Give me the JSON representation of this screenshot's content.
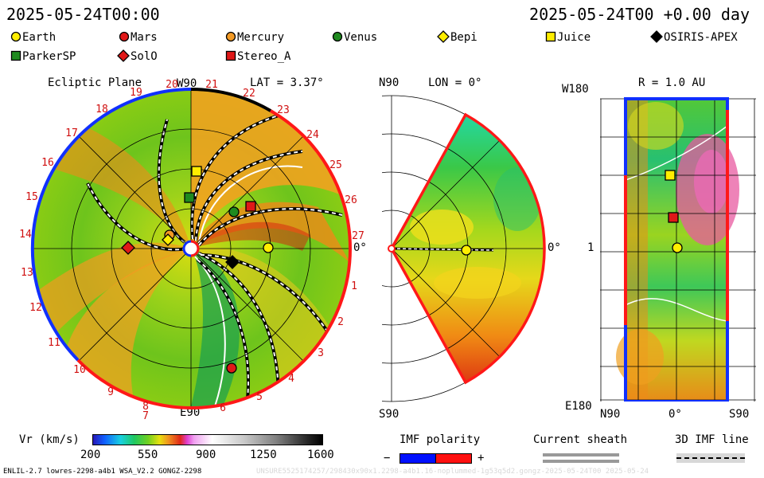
{
  "header": {
    "left_time": "2025-05-24T00:00",
    "right_time": "2025-05-24T00 +0.00 day"
  },
  "legend": [
    {
      "name": "Earth",
      "shape": "circle",
      "color": "#ffee00"
    },
    {
      "name": "Mars",
      "shape": "circle",
      "color": "#e01818"
    },
    {
      "name": "Mercury",
      "shape": "circle",
      "color": "#f39a25"
    },
    {
      "name": "Venus",
      "shape": "circle",
      "color": "#1f8a1f"
    },
    {
      "name": "Bepi",
      "shape": "diamond",
      "color": "#ffee00"
    },
    {
      "name": "Juice",
      "shape": "square",
      "color": "#ffee00"
    },
    {
      "name": "OSIRIS-APEX",
      "shape": "diamond",
      "color": "#000000"
    },
    {
      "name": "ParkerSP",
      "shape": "square",
      "color": "#1f8a1f"
    },
    {
      "name": "SolO",
      "shape": "diamond",
      "color": "#e01818"
    },
    {
      "name": "Stereo_A",
      "shape": "square",
      "color": "#e01818"
    }
  ],
  "ecliptic": {
    "title": "Ecliptic Plane",
    "lat_label": "LAT = 3.37°",
    "top_label": "W90",
    "bottom_label": "E90",
    "right_label": "0°",
    "carrington": [
      "1",
      "2",
      "3",
      "4",
      "5",
      "6",
      "7",
      "8",
      "9",
      "10",
      "11",
      "12",
      "13",
      "14",
      "15",
      "16",
      "17",
      "18",
      "19",
      "20",
      "21",
      "22",
      "23",
      "24",
      "25",
      "26",
      "27"
    ]
  },
  "meridional": {
    "title": "LON = 0°",
    "top_label": "N90",
    "bottom_label": "S90",
    "right_label": "0°"
  },
  "sphere": {
    "title": "R = 1.0 AU",
    "top_label": "W180",
    "bottom_label": "E180",
    "mid_label": "1",
    "x_left": "N90",
    "x_mid": "0°",
    "x_right": "S90"
  },
  "colorbar": {
    "label": "Vr (km/s)",
    "ticks": [
      "200",
      "550",
      "900",
      "1250",
      "1600"
    ]
  },
  "imf": {
    "label": "IMF polarity",
    "minus": "−",
    "plus": "+",
    "neg_color": "#0010ff",
    "pos_color": "#ff1010"
  },
  "sheath_label": "Current sheath",
  "imf3d_label": "3D IMF line",
  "footer_left": "ENLIL-2.7 lowres-2298-a4b1 WSA_V2.2 GONGZ-2298",
  "footer_right": "UNSURE5525174257/298430x90x1.2298-a4b1.16-noplummed-1g53q5d2.gongz-2025-05-24T00     2025-05-24"
}
